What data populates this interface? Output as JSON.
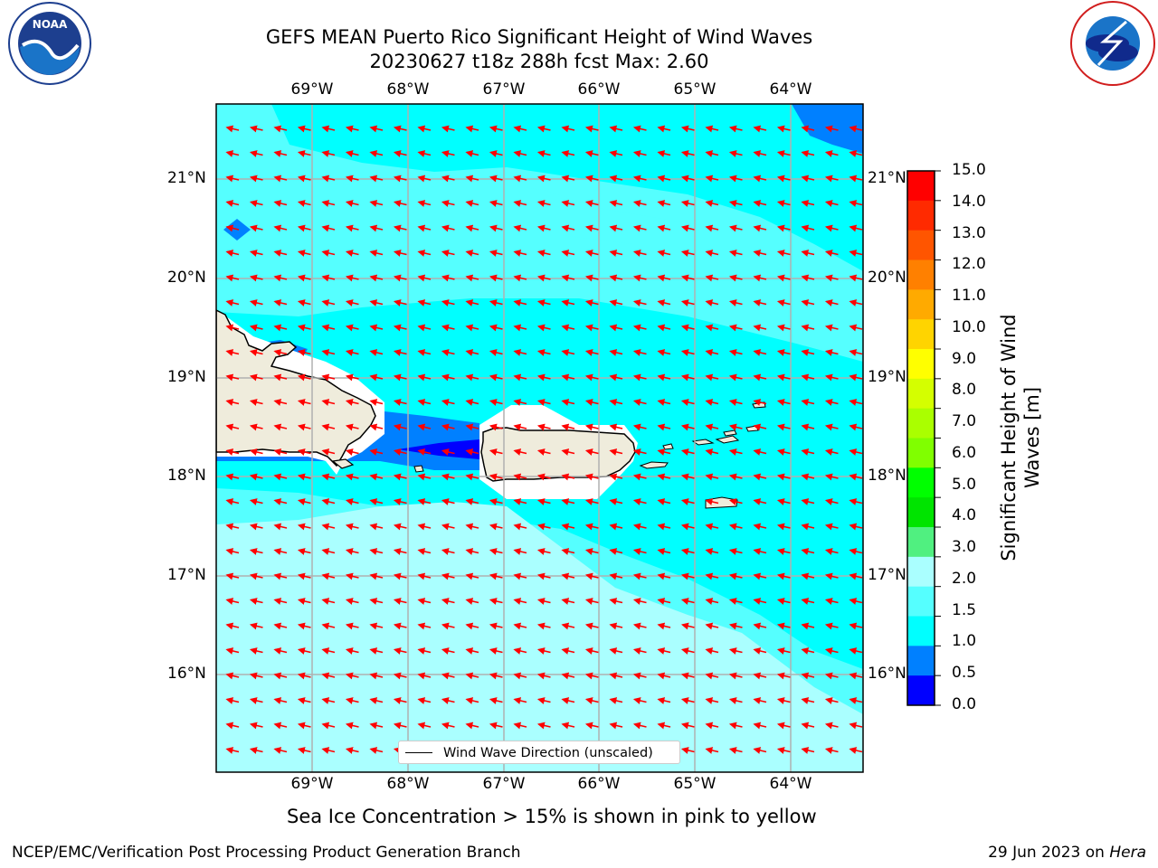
{
  "title": {
    "line1": "GEFS MEAN Puerto Rico Significant Height of Wind Waves",
    "line2": "20230627 t18z 288h fcst   Max: 2.60"
  },
  "logos": {
    "noaa_text": "NOAA",
    "noaa_ring": "NATIONAL OCEANIC AND ATMOSPHERIC ADMINISTRATION · U.S. DEPARTMENT OF COMMERCE",
    "nws_ring": "NATIONAL WEATHER SERVICE"
  },
  "map": {
    "lon_labels": [
      "69°W",
      "68°W",
      "67°W",
      "66°W",
      "65°W",
      "64°W"
    ],
    "lat_labels": [
      "21°N",
      "20°N",
      "19°N",
      "18°N",
      "17°N",
      "16°N"
    ],
    "legend_label": "Wind Wave Direction (unscaled)",
    "arrow_color": "#ff0000",
    "land_color": "#efecdc"
  },
  "colorbar": {
    "label_line1": "Significant Height of Wind",
    "label_line2": "Waves [m]",
    "ticks": [
      "15.0",
      "14.0",
      "13.0",
      "12.0",
      "11.0",
      "10.0",
      "9.0",
      "8.0",
      "7.0",
      "6.0",
      "5.0",
      "4.0",
      "3.0",
      "2.0",
      "1.5",
      "1.0",
      "0.5",
      "0.0"
    ],
    "colors_top_to_bottom": [
      "#ff0000",
      "#ff2a00",
      "#ff5500",
      "#ff8000",
      "#ffaa00",
      "#ffd400",
      "#ffff00",
      "#d4ff00",
      "#aaff00",
      "#80ff00",
      "#00ff00",
      "#00e400",
      "#50f080",
      "#aaffff",
      "#55ffff",
      "#00ffff",
      "#0080ff",
      "#0000ff"
    ]
  },
  "footer": {
    "sea_ice_note": "Sea Ice Concentration > 15% is shown in pink to yellow",
    "branch": "NCEP/EMC/Verification Post Processing Product Generation Branch",
    "date": "29 Jun 2023 on ",
    "host": "Hera"
  }
}
